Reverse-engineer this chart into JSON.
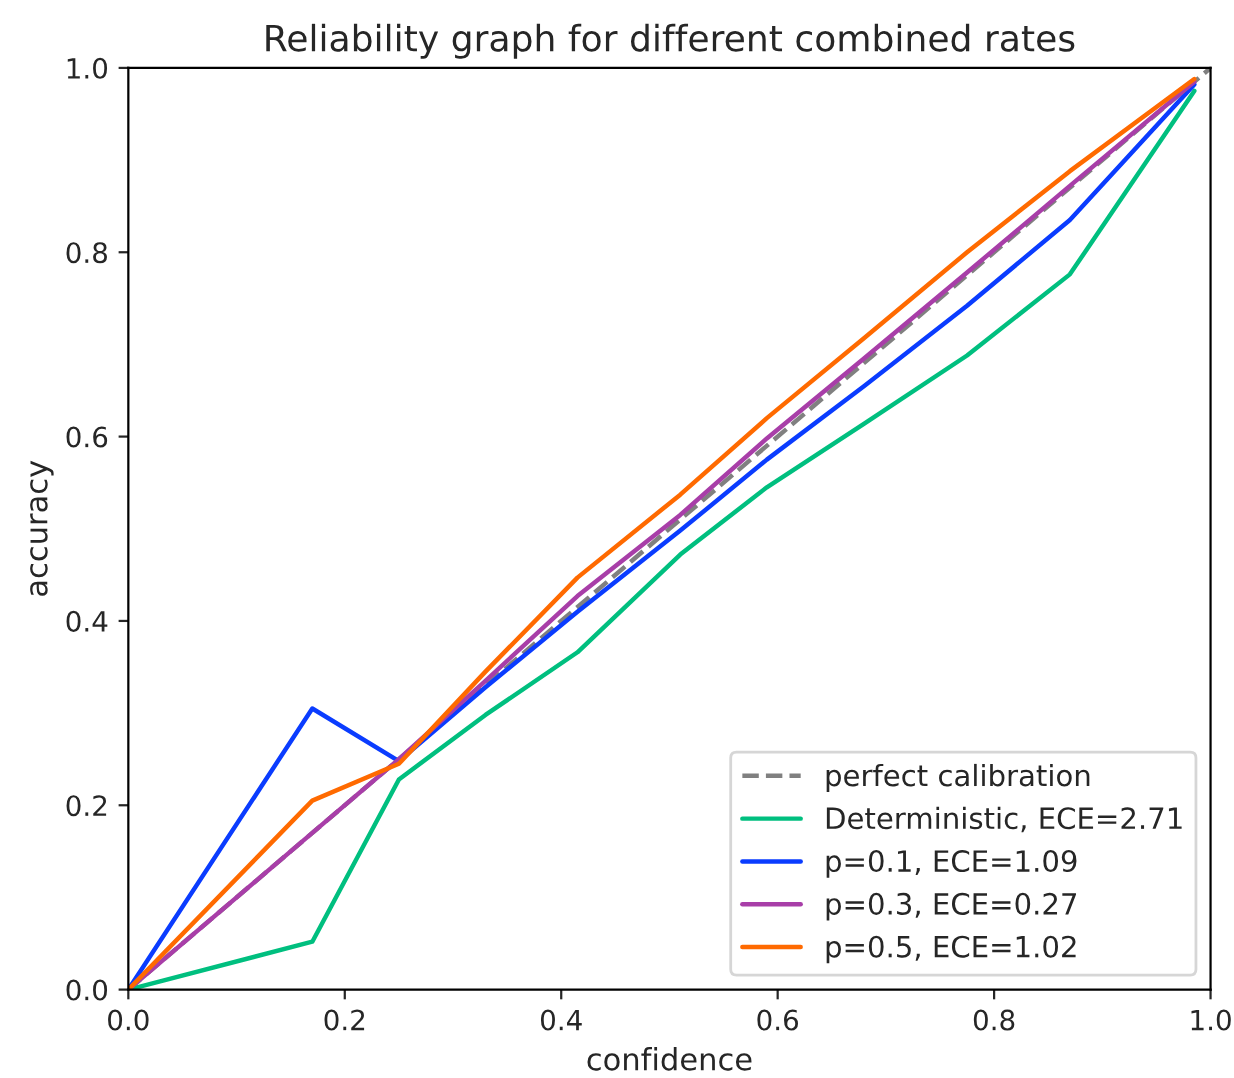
{
  "chart_data": {
    "type": "line",
    "title": "Reliability graph for different combined rates",
    "xlabel": "confidence",
    "ylabel": "accuracy",
    "xlim": [
      0,
      1
    ],
    "ylim": [
      0,
      1
    ],
    "xticks": [
      {
        "value": 0,
        "label": "0.0"
      },
      {
        "value": 0.2,
        "label": "0.2"
      },
      {
        "value": 0.4,
        "label": "0.4"
      },
      {
        "value": 0.6,
        "label": "0.6"
      },
      {
        "value": 0.8,
        "label": "0.8"
      },
      {
        "value": 1,
        "label": "1.0"
      }
    ],
    "yticks": [
      {
        "value": 0,
        "label": "0.0"
      },
      {
        "value": 0.2,
        "label": "0.2"
      },
      {
        "value": 0.4,
        "label": "0.4"
      },
      {
        "value": 0.6,
        "label": "0.6"
      },
      {
        "value": 0.8,
        "label": "0.8"
      },
      {
        "value": 1,
        "label": "1.0"
      }
    ],
    "grid": false,
    "legend": "bottom right",
    "series": [
      {
        "name": "perfect calibration",
        "color": "#808080",
        "line_style": "dashed",
        "x": [
          0,
          1
        ],
        "values": [
          0,
          1
        ]
      },
      {
        "name": "Deterministic, ECE=2.71",
        "color": "#00bf7f",
        "x": [
          0,
          0.17,
          0.25,
          0.33,
          0.415,
          0.51,
          0.59,
          0.68,
          0.775,
          0.87,
          0.985
        ],
        "values": [
          0,
          0.052,
          0.228,
          0.298,
          0.366,
          0.472,
          0.545,
          0.614,
          0.688,
          0.776,
          0.975
        ]
      },
      {
        "name": "p=0.1, ECE=1.09",
        "color": "#0a3cff",
        "x": [
          0,
          0.17,
          0.25,
          0.33,
          0.415,
          0.51,
          0.59,
          0.68,
          0.775,
          0.87,
          0.985
        ],
        "values": [
          0,
          0.305,
          0.248,
          0.328,
          0.41,
          0.498,
          0.575,
          0.655,
          0.742,
          0.835,
          0.982
        ]
      },
      {
        "name": "p=0.3, ECE=0.27",
        "color": "#a83ea8",
        "x": [
          0,
          0.17,
          0.25,
          0.33,
          0.415,
          0.51,
          0.59,
          0.68,
          0.775,
          0.87,
          0.985
        ],
        "values": [
          0,
          0.17,
          0.25,
          0.335,
          0.427,
          0.515,
          0.598,
          0.685,
          0.778,
          0.872,
          0.985
        ]
      },
      {
        "name": "p=0.5, ECE=1.02",
        "color": "#ff6a00",
        "x": [
          0,
          0.17,
          0.25,
          0.33,
          0.415,
          0.51,
          0.59,
          0.68,
          0.775,
          0.87,
          0.985
        ],
        "values": [
          0,
          0.205,
          0.245,
          0.345,
          0.447,
          0.537,
          0.62,
          0.707,
          0.8,
          0.888,
          0.988
        ]
      }
    ]
  }
}
